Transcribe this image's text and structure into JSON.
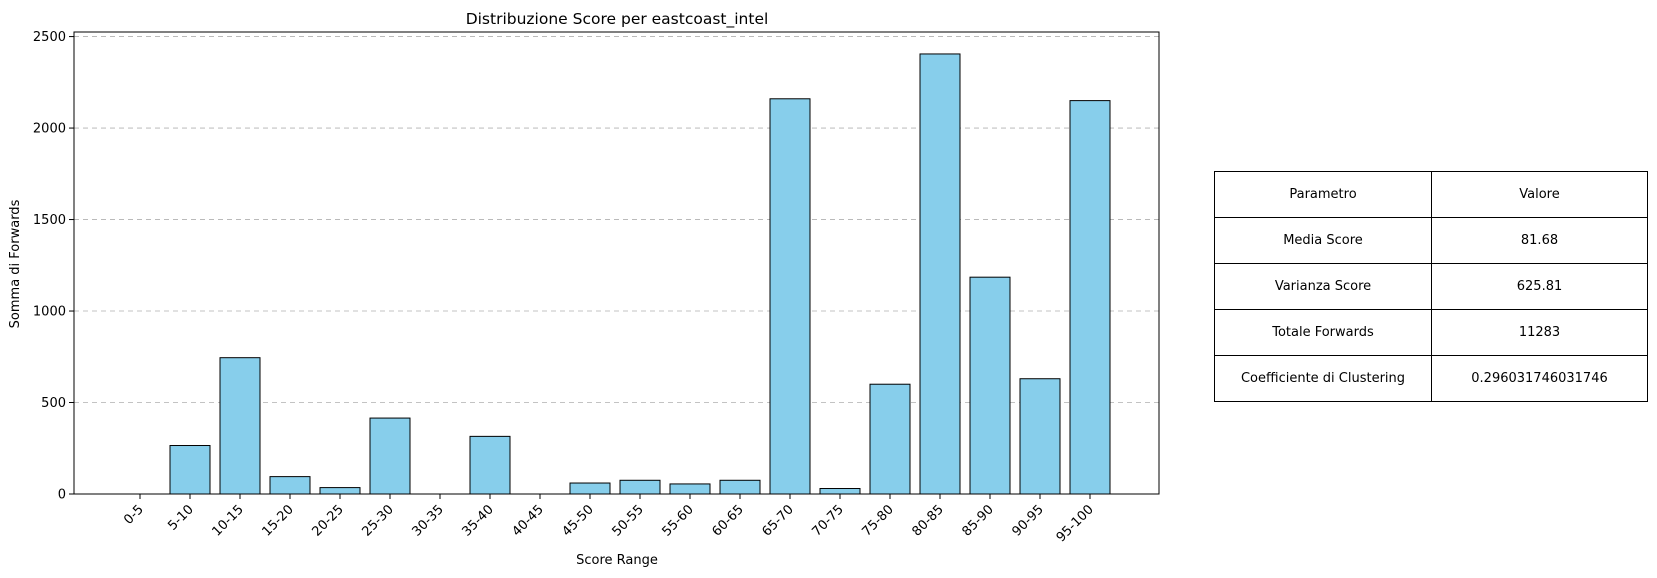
{
  "chart_data": {
    "type": "bar",
    "title": "Distribuzione Score per eastcoast_intel",
    "xlabel": "Score Range",
    "ylabel": "Somma di Forwards",
    "categories": [
      "0-5",
      "5-10",
      "10-15",
      "15-20",
      "20-25",
      "25-30",
      "30-35",
      "35-40",
      "40-45",
      "45-50",
      "50-55",
      "55-60",
      "60-65",
      "65-70",
      "70-75",
      "75-80",
      "80-85",
      "85-90",
      "90-95",
      "95-100"
    ],
    "values": [
      0,
      265,
      745,
      95,
      35,
      415,
      0,
      315,
      0,
      60,
      75,
      55,
      75,
      2160,
      30,
      600,
      2405,
      1185,
      630,
      2150
    ],
    "ylim": [
      0,
      2525
    ],
    "yticks": [
      0,
      500,
      1000,
      1500,
      2000,
      2500
    ],
    "grid": "y, dashed",
    "bar_color": "#87ceeb",
    "edge_color": "#000000"
  },
  "table": {
    "header": [
      "Parametro",
      "Valore"
    ],
    "rows": [
      [
        "Media Score",
        "81.68"
      ],
      [
        "Varianza Score",
        "625.81"
      ],
      [
        "Totale Forwards",
        "11283"
      ],
      [
        "Coefficiente di Clustering",
        "0.296031746031746"
      ]
    ]
  }
}
